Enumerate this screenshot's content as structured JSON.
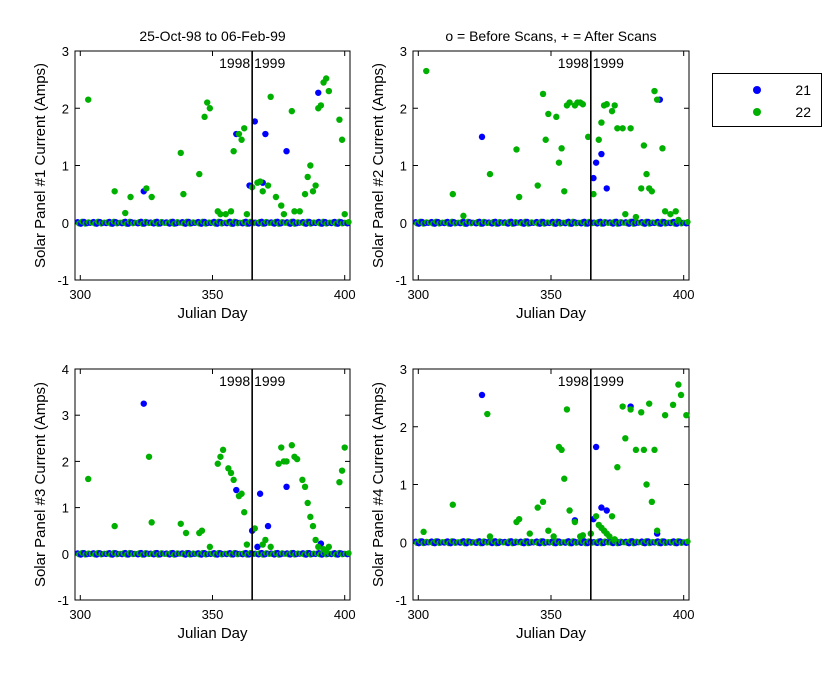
{
  "colors": {
    "series_21": "#0000ff",
    "series_22": "#00b000"
  },
  "legend": {
    "position": "outside-right",
    "items": [
      {
        "label": "21",
        "color": "#0000ff"
      },
      {
        "label": "22",
        "color": "#00b000"
      }
    ]
  },
  "chart_data": [
    {
      "type": "scatter",
      "title": "25-Oct-98 to 06-Feb-99",
      "xlabel": "Julian Day",
      "ylabel": "Solar Panel #1 Current (Amps)",
      "xlim": [
        298,
        402
      ],
      "ylim": [
        -1,
        3
      ],
      "xticks": [
        "300",
        "350",
        "400"
      ],
      "yticks": [
        "-1",
        "0",
        "1",
        "2",
        "3"
      ],
      "vline_x": 365,
      "annotation": "1998 1999",
      "series": [
        {
          "name": "21",
          "points": [
            [
              324,
              0.55
            ],
            [
              359,
              1.55
            ],
            [
              364,
              0.65
            ],
            [
              366,
              1.77
            ],
            [
              369,
              0.7
            ],
            [
              370,
              1.55
            ],
            [
              378,
              1.25
            ],
            [
              390,
              2.27
            ]
          ]
        },
        {
          "name": "22",
          "points": [
            [
              303,
              2.15
            ],
            [
              313,
              0.55
            ],
            [
              317,
              0.17
            ],
            [
              319,
              0.45
            ],
            [
              325,
              0.6
            ],
            [
              327,
              0.45
            ],
            [
              338,
              1.22
            ],
            [
              339,
              0.5
            ],
            [
              345,
              0.85
            ],
            [
              347,
              1.85
            ],
            [
              348,
              2.1
            ],
            [
              349,
              2.0
            ],
            [
              352,
              0.2
            ],
            [
              353,
              0.15
            ],
            [
              355,
              0.15
            ],
            [
              357,
              0.2
            ],
            [
              358,
              1.25
            ],
            [
              360,
              1.55
            ],
            [
              361,
              1.45
            ],
            [
              362,
              1.65
            ],
            [
              363,
              0.15
            ],
            [
              365,
              0.62
            ],
            [
              367,
              0.7
            ],
            [
              368,
              0.72
            ],
            [
              369,
              0.55
            ],
            [
              371,
              0.65
            ],
            [
              372,
              2.2
            ],
            [
              374,
              0.45
            ],
            [
              376,
              0.3
            ],
            [
              377,
              0.15
            ],
            [
              380,
              1.95
            ],
            [
              381,
              0.2
            ],
            [
              383,
              0.2
            ],
            [
              385,
              0.5
            ],
            [
              386,
              0.8
            ],
            [
              387,
              1.0
            ],
            [
              388,
              0.55
            ],
            [
              389,
              0.65
            ],
            [
              390,
              2.0
            ],
            [
              391,
              2.05
            ],
            [
              392,
              2.45
            ],
            [
              393,
              2.52
            ],
            [
              394,
              2.3
            ],
            [
              398,
              1.8
            ],
            [
              399,
              1.45
            ],
            [
              400,
              0.15
            ]
          ]
        }
      ]
    },
    {
      "type": "scatter",
      "title": "o = Before Scans, + = After Scans",
      "xlabel": "Julian Day",
      "ylabel": "Solar Panel #2 Current (Amps)",
      "xlim": [
        298,
        402
      ],
      "ylim": [
        -1,
        3
      ],
      "xticks": [
        "300",
        "350",
        "400"
      ],
      "yticks": [
        "-1",
        "0",
        "1",
        "2",
        "3"
      ],
      "vline_x": 365,
      "annotation": "1998 1999",
      "series": [
        {
          "name": "21",
          "points": [
            [
              324,
              1.5
            ],
            [
              366,
              0.78
            ],
            [
              367,
              1.05
            ],
            [
              369,
              1.2
            ],
            [
              371,
              0.6
            ],
            [
              391,
              2.15
            ]
          ]
        },
        {
          "name": "22",
          "points": [
            [
              303,
              2.65
            ],
            [
              313,
              0.5
            ],
            [
              317,
              0.12
            ],
            [
              327,
              0.85
            ],
            [
              337,
              1.28
            ],
            [
              338,
              0.45
            ],
            [
              345,
              0.65
            ],
            [
              347,
              2.25
            ],
            [
              348,
              1.45
            ],
            [
              349,
              1.9
            ],
            [
              352,
              1.85
            ],
            [
              353,
              1.05
            ],
            [
              354,
              1.3
            ],
            [
              355,
              0.55
            ],
            [
              356,
              2.05
            ],
            [
              357,
              2.1
            ],
            [
              359,
              2.05
            ],
            [
              360,
              2.1
            ],
            [
              361,
              2.1
            ],
            [
              362,
              2.07
            ],
            [
              364,
              1.5
            ],
            [
              366,
              0.5
            ],
            [
              368,
              1.45
            ],
            [
              369,
              1.75
            ],
            [
              370,
              2.05
            ],
            [
              371,
              2.07
            ],
            [
              373,
              1.95
            ],
            [
              374,
              2.05
            ],
            [
              375,
              1.65
            ],
            [
              377,
              1.65
            ],
            [
              378,
              0.15
            ],
            [
              380,
              1.65
            ],
            [
              382,
              0.1
            ],
            [
              384,
              0.6
            ],
            [
              385,
              1.35
            ],
            [
              386,
              0.85
            ],
            [
              387,
              0.6
            ],
            [
              388,
              0.55
            ],
            [
              389,
              2.3
            ],
            [
              390,
              2.15
            ],
            [
              392,
              1.3
            ],
            [
              393,
              0.2
            ],
            [
              395,
              0.15
            ],
            [
              397,
              0.2
            ],
            [
              398,
              0.05
            ]
          ]
        }
      ]
    },
    {
      "type": "scatter",
      "title": "",
      "xlabel": "Julian Day",
      "ylabel": "Solar Panel #3 Current (Amps)",
      "xlim": [
        298,
        402
      ],
      "ylim": [
        -1,
        4
      ],
      "xticks": [
        "300",
        "350",
        "400"
      ],
      "yticks": [
        "-1",
        "0",
        "1",
        "2",
        "3",
        "4"
      ],
      "vline_x": 365,
      "annotation": "1998 1999",
      "series": [
        {
          "name": "21",
          "points": [
            [
              324,
              3.25
            ],
            [
              359,
              1.38
            ],
            [
              365,
              0.5
            ],
            [
              367,
              0.15
            ],
            [
              368,
              1.3
            ],
            [
              371,
              0.6
            ],
            [
              378,
              1.45
            ],
            [
              391,
              0.22
            ]
          ]
        },
        {
          "name": "22",
          "points": [
            [
              303,
              1.62
            ],
            [
              313,
              0.6
            ],
            [
              326,
              2.1
            ],
            [
              327,
              0.68
            ],
            [
              338,
              0.65
            ],
            [
              340,
              0.45
            ],
            [
              345,
              0.45
            ],
            [
              346,
              0.5
            ],
            [
              349,
              0.15
            ],
            [
              352,
              1.95
            ],
            [
              353,
              2.1
            ],
            [
              354,
              2.25
            ],
            [
              356,
              1.85
            ],
            [
              357,
              1.75
            ],
            [
              358,
              1.6
            ],
            [
              360,
              1.25
            ],
            [
              361,
              1.3
            ],
            [
              362,
              0.9
            ],
            [
              363,
              0.2
            ],
            [
              366,
              0.55
            ],
            [
              369,
              0.2
            ],
            [
              370,
              0.3
            ],
            [
              372,
              0.15
            ],
            [
              375,
              1.95
            ],
            [
              376,
              2.3
            ],
            [
              377,
              2.0
            ],
            [
              378,
              2.0
            ],
            [
              380,
              2.35
            ],
            [
              381,
              2.1
            ],
            [
              382,
              2.05
            ],
            [
              384,
              1.6
            ],
            [
              385,
              1.45
            ],
            [
              386,
              1.1
            ],
            [
              387,
              0.8
            ],
            [
              388,
              0.6
            ],
            [
              389,
              0.3
            ],
            [
              390,
              0.15
            ],
            [
              392,
              0.1
            ],
            [
              393,
              0.05
            ],
            [
              394,
              0.15
            ],
            [
              398,
              1.55
            ],
            [
              399,
              1.8
            ],
            [
              400,
              2.3
            ]
          ]
        }
      ]
    },
    {
      "type": "scatter",
      "title": "",
      "xlabel": "Julian Day",
      "ylabel": "Solar Panel #4 Current (Amps)",
      "xlim": [
        298,
        402
      ],
      "ylim": [
        -1,
        3
      ],
      "xticks": [
        "300",
        "350",
        "400"
      ],
      "yticks": [
        "-1",
        "0",
        "1",
        "2",
        "3"
      ],
      "vline_x": 365,
      "annotation": "1998 1999",
      "series": [
        {
          "name": "21",
          "points": [
            [
              324,
              2.55
            ],
            [
              359,
              0.38
            ],
            [
              366,
              0.4
            ],
            [
              367,
              1.65
            ],
            [
              369,
              0.6
            ],
            [
              371,
              0.55
            ],
            [
              380,
              2.35
            ],
            [
              390,
              0.15
            ]
          ]
        },
        {
          "name": "22",
          "points": [
            [
              302,
              0.18
            ],
            [
              313,
              0.65
            ],
            [
              326,
              2.22
            ],
            [
              327,
              0.1
            ],
            [
              337,
              0.35
            ],
            [
              338,
              0.4
            ],
            [
              342,
              0.15
            ],
            [
              345,
              0.6
            ],
            [
              347,
              0.7
            ],
            [
              349,
              0.2
            ],
            [
              351,
              0.1
            ],
            [
              353,
              1.65
            ],
            [
              354,
              1.6
            ],
            [
              355,
              1.1
            ],
            [
              356,
              2.3
            ],
            [
              357,
              0.55
            ],
            [
              359,
              0.35
            ],
            [
              361,
              0.1
            ],
            [
              362,
              0.12
            ],
            [
              365,
              0.15
            ],
            [
              367,
              0.45
            ],
            [
              368,
              0.3
            ],
            [
              369,
              0.25
            ],
            [
              370,
              0.2
            ],
            [
              371,
              0.15
            ],
            [
              372,
              0.1
            ],
            [
              373,
              0.45
            ],
            [
              374,
              0.05
            ],
            [
              375,
              1.3
            ],
            [
              377,
              2.35
            ],
            [
              378,
              1.8
            ],
            [
              380,
              2.3
            ],
            [
              382,
              1.6
            ],
            [
              384,
              2.25
            ],
            [
              385,
              1.6
            ],
            [
              386,
              1.0
            ],
            [
              387,
              2.4
            ],
            [
              388,
              0.7
            ],
            [
              389,
              1.6
            ],
            [
              390,
              0.2
            ],
            [
              393,
              2.2
            ],
            [
              396,
              2.38
            ],
            [
              398,
              2.73
            ],
            [
              399,
              2.55
            ],
            [
              401,
              2.2
            ]
          ]
        }
      ]
    }
  ]
}
